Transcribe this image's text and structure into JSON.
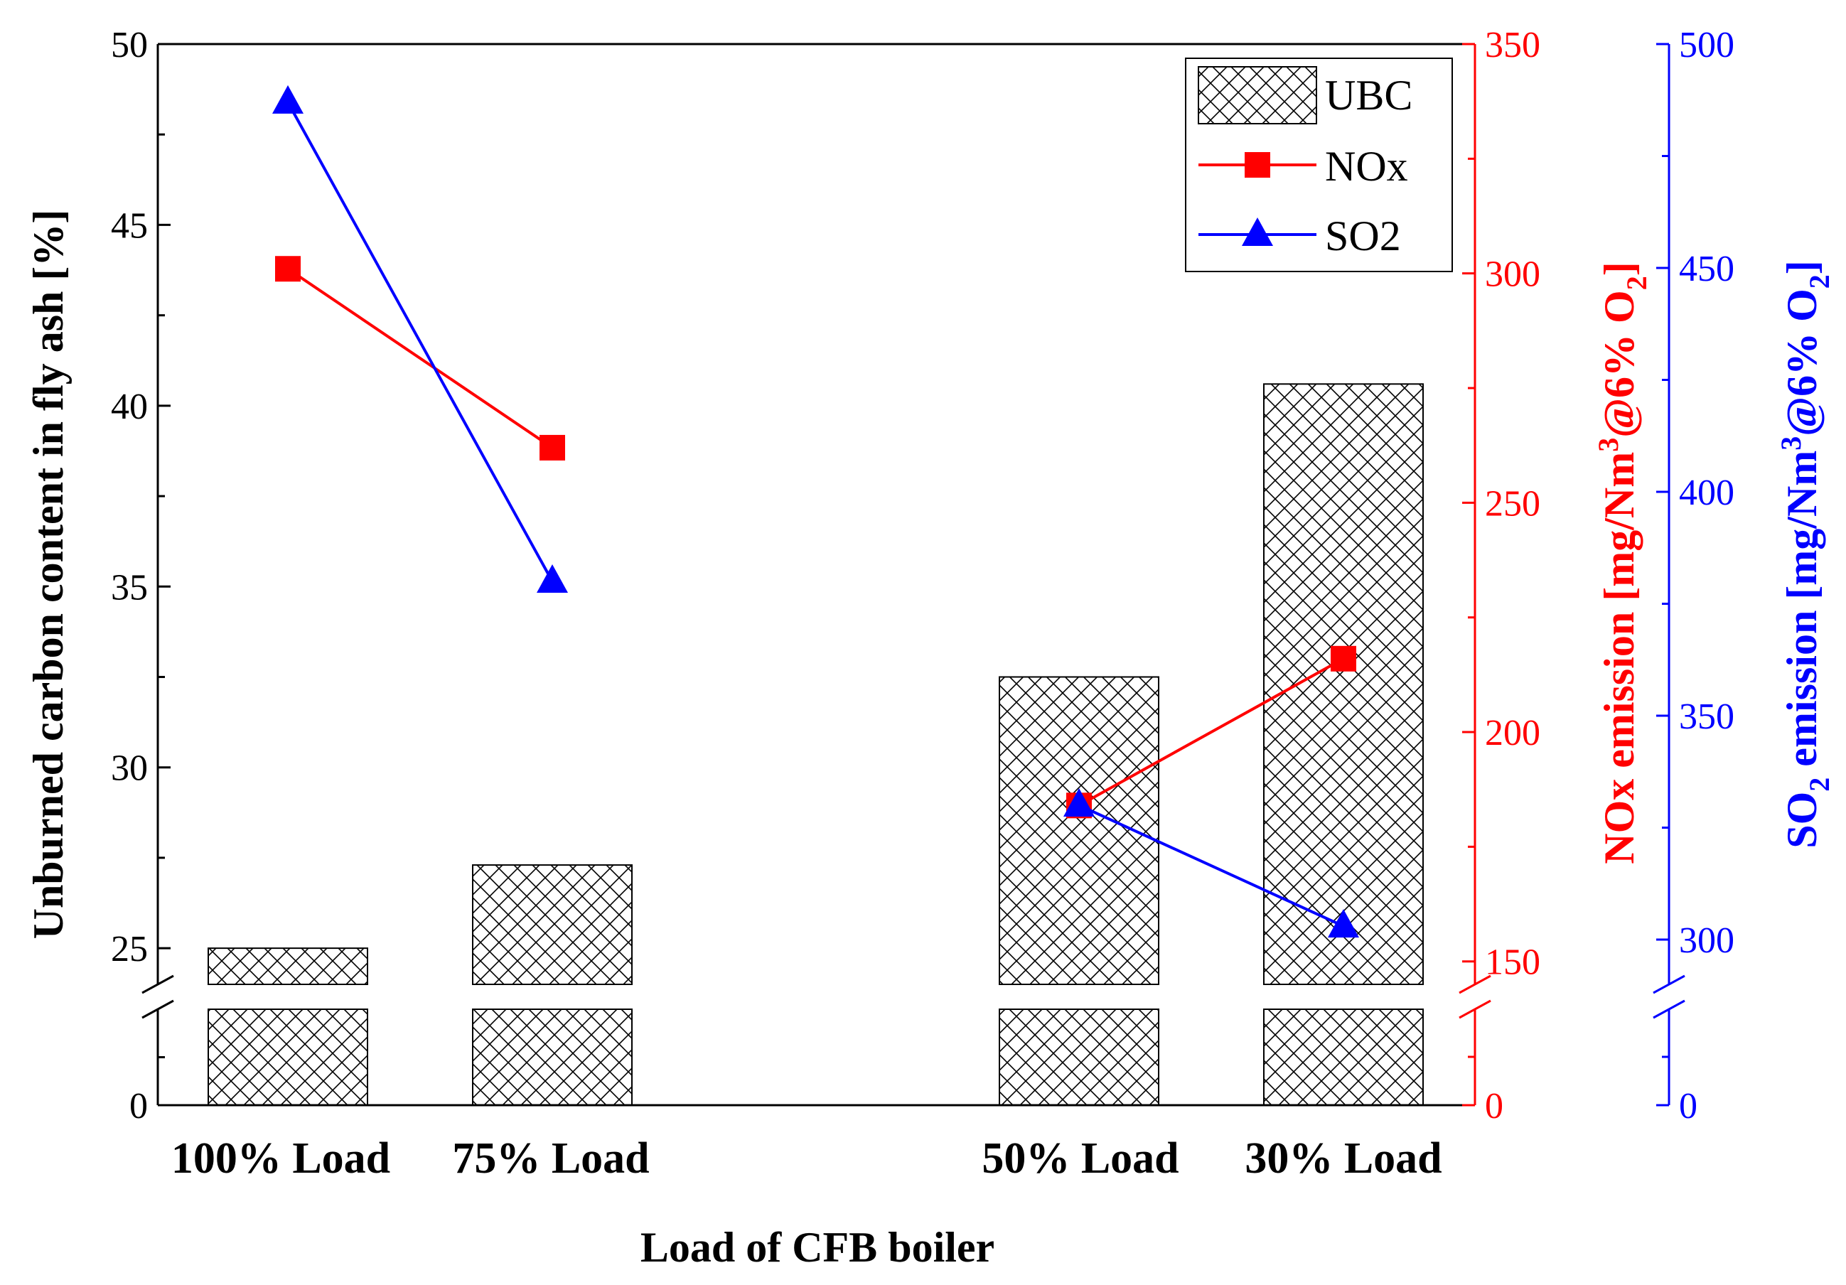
{
  "chart_data": {
    "type": "bar",
    "xlabel": "Load of CFB boiler",
    "categories": [
      "100% Load",
      "75% Load",
      "50% Load",
      "30% Load"
    ],
    "left_axis": {
      "label": "Unburned carbon content in fly ash [%]",
      "ticks": [
        "0",
        "25",
        "30",
        "35",
        "40",
        "45",
        "50"
      ],
      "break": true,
      "ylim_upper": [
        24,
        50
      ],
      "ylim_lower": [
        0,
        24
      ]
    },
    "right_axis_nox": {
      "label_main": "NOx emission [mg/Nm",
      "label_sup": "3",
      "label_mid": "@6% O",
      "label_sub": "2",
      "label_end": "]",
      "ticks": [
        "0",
        "150",
        "200",
        "250",
        "300",
        "350"
      ],
      "ylim_upper": [
        145,
        350
      ],
      "color": "#ff0000"
    },
    "right_axis_so2": {
      "label_pre": "SO",
      "label_pre_sub": "2",
      "label_main": " emission [mg/Nm",
      "label_sup": "3",
      "label_mid": "@6% O",
      "label_sub": "2",
      "label_end": "]",
      "ticks": [
        "0",
        "300",
        "350",
        "400",
        "450",
        "500"
      ],
      "ylim_upper": [
        290,
        500
      ],
      "color": "#0000ff"
    },
    "series": [
      {
        "name": "UBC",
        "type": "bar",
        "axis": "left",
        "values": [
          25.0,
          27.3,
          32.5,
          40.6
        ]
      },
      {
        "name": "NOx",
        "type": "line",
        "axis": "right_nox",
        "marker": "square",
        "color": "#ff0000",
        "values": [
          301,
          262,
          null,
          216
        ]
      },
      {
        "name": "SO2",
        "type": "line",
        "axis": "right_so2",
        "marker": "triangle",
        "color": "#0000ff",
        "values": [
          487,
          380,
          330,
          303
        ]
      }
    ],
    "nox_50_load": 184,
    "legend": {
      "position": "top-right",
      "entries": [
        "UBC",
        "NOx",
        "SO2"
      ]
    }
  }
}
